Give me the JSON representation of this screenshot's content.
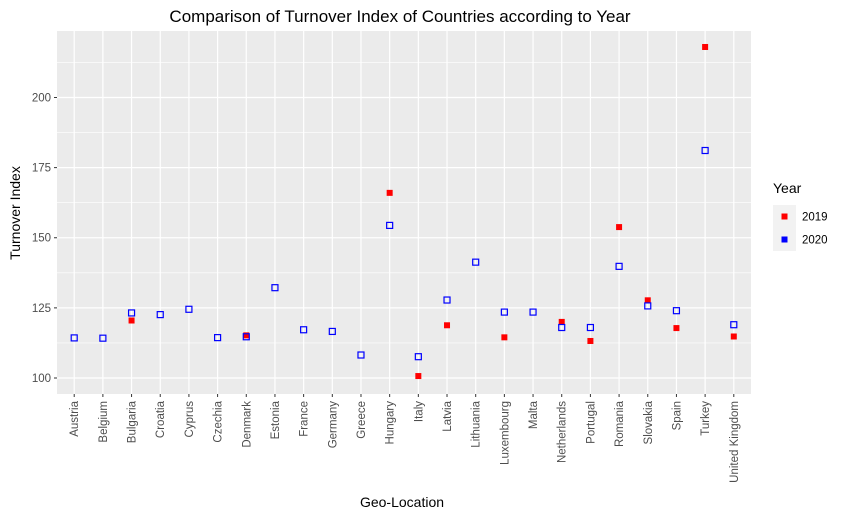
{
  "chart_data": {
    "type": "scatter",
    "title": "Comparison of Turnover Index of Countries according to Year",
    "xlabel": "Geo-Location",
    "ylabel": "Turnover Index",
    "ylim": [
      94.3,
      223.7
    ],
    "yticks": [
      100,
      125,
      150,
      175,
      200
    ],
    "grid": true,
    "legend_position": "right",
    "legend_title": "Year",
    "categories": [
      "Austria",
      "Belgium",
      "Bulgaria",
      "Croatia",
      "Cyprus",
      "Czechia",
      "Denmark",
      "Estonia",
      "France",
      "Germany",
      "Greece",
      "Hungary",
      "Italy",
      "Latvia",
      "Lithuania",
      "Luxembourg",
      "Malta",
      "Netherlands",
      "Portugal",
      "Romania",
      "Slovakia",
      "Spain",
      "Turkey",
      "United Kingdom"
    ],
    "series": [
      {
        "name": "2019",
        "color": "#ff0000",
        "marker": "filled-square",
        "values": [
          null,
          null,
          120.5,
          null,
          null,
          null,
          115.2,
          null,
          null,
          null,
          null,
          166,
          100.7,
          118.8,
          null,
          114.5,
          null,
          120,
          113.2,
          153.8,
          127.7,
          117.8,
          218,
          114.8
        ]
      },
      {
        "name": "2020",
        "color": "#0000ff",
        "marker": "open-square",
        "values": [
          114.3,
          114.2,
          123.2,
          122.6,
          124.5,
          114.4,
          114.7,
          132.2,
          117.2,
          116.6,
          108.2,
          154.4,
          107.6,
          127.8,
          141.3,
          123.5,
          123.5,
          118,
          118,
          139.8,
          125.7,
          124,
          181.1,
          119
        ]
      }
    ]
  }
}
